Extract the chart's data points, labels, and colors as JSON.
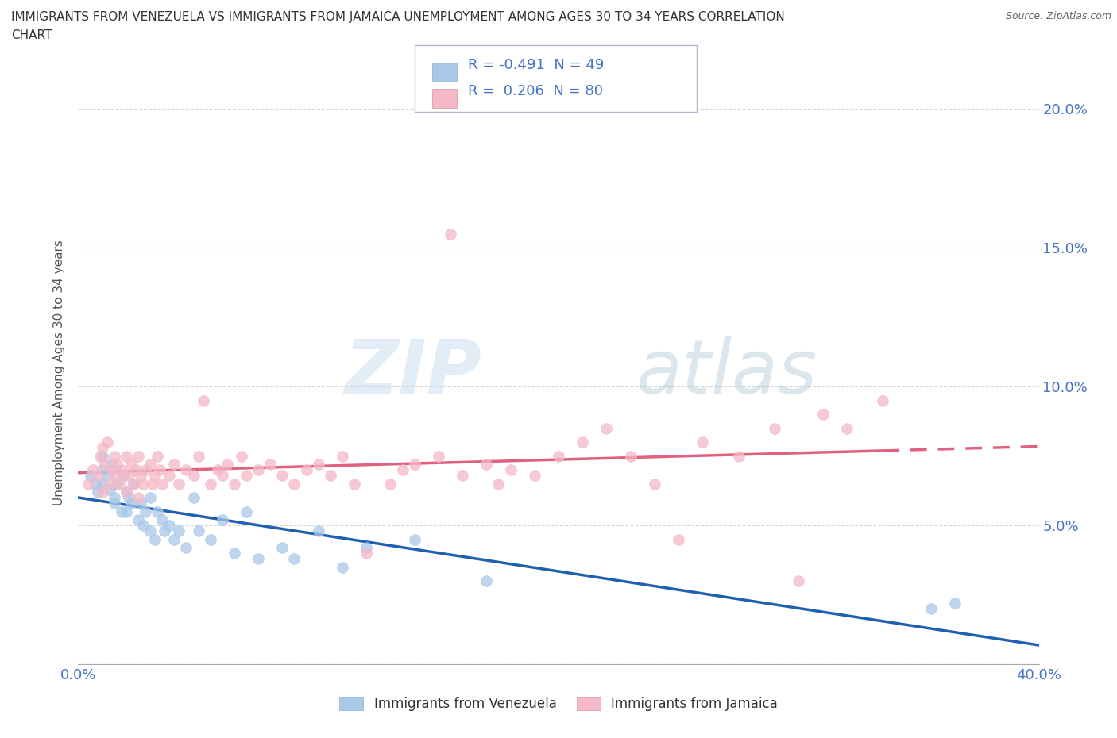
{
  "title_line1": "IMMIGRANTS FROM VENEZUELA VS IMMIGRANTS FROM JAMAICA UNEMPLOYMENT AMONG AGES 30 TO 34 YEARS CORRELATION",
  "title_line2": "CHART",
  "source": "Source: ZipAtlas.com",
  "ylabel": "Unemployment Among Ages 30 to 34 years",
  "watermark": "ZIPatlas",
  "venezuela_R": -0.491,
  "venezuela_N": 49,
  "jamaica_R": 0.206,
  "jamaica_N": 80,
  "venezuela_color": "#a8c8e8",
  "jamaica_color": "#f4b8c8",
  "venezuela_line_color": "#2060b0",
  "jamaica_line_color": "#e06080",
  "background_color": "#ffffff",
  "xlim": [
    0.0,
    0.4
  ],
  "ylim": [
    0.0,
    0.21
  ],
  "venezuela_x": [
    0.005,
    0.007,
    0.008,
    0.01,
    0.01,
    0.01,
    0.012,
    0.013,
    0.014,
    0.015,
    0.015,
    0.016,
    0.018,
    0.019,
    0.02,
    0.02,
    0.021,
    0.022,
    0.023,
    0.025,
    0.026,
    0.027,
    0.028,
    0.03,
    0.03,
    0.032,
    0.033,
    0.035,
    0.036,
    0.038,
    0.04,
    0.042,
    0.045,
    0.048,
    0.05,
    0.055,
    0.06,
    0.065,
    0.07,
    0.075,
    0.085,
    0.09,
    0.1,
    0.11,
    0.12,
    0.14,
    0.17,
    0.355,
    0.365
  ],
  "venezuela_y": [
    0.068,
    0.065,
    0.062,
    0.075,
    0.07,
    0.065,
    0.068,
    0.063,
    0.072,
    0.06,
    0.058,
    0.065,
    0.055,
    0.068,
    0.062,
    0.055,
    0.06,
    0.058,
    0.065,
    0.052,
    0.058,
    0.05,
    0.055,
    0.048,
    0.06,
    0.045,
    0.055,
    0.052,
    0.048,
    0.05,
    0.045,
    0.048,
    0.042,
    0.06,
    0.048,
    0.045,
    0.052,
    0.04,
    0.055,
    0.038,
    0.042,
    0.038,
    0.048,
    0.035,
    0.042,
    0.045,
    0.03,
    0.02,
    0.022
  ],
  "jamaica_x": [
    0.004,
    0.006,
    0.008,
    0.009,
    0.01,
    0.01,
    0.011,
    0.012,
    0.013,
    0.014,
    0.015,
    0.015,
    0.016,
    0.017,
    0.018,
    0.019,
    0.02,
    0.02,
    0.021,
    0.022,
    0.023,
    0.024,
    0.025,
    0.025,
    0.026,
    0.027,
    0.028,
    0.03,
    0.031,
    0.032,
    0.033,
    0.034,
    0.035,
    0.038,
    0.04,
    0.042,
    0.045,
    0.048,
    0.05,
    0.052,
    0.055,
    0.058,
    0.06,
    0.062,
    0.065,
    0.068,
    0.07,
    0.075,
    0.08,
    0.085,
    0.09,
    0.095,
    0.1,
    0.105,
    0.11,
    0.115,
    0.12,
    0.13,
    0.135,
    0.14,
    0.15,
    0.155,
    0.16,
    0.17,
    0.175,
    0.18,
    0.19,
    0.2,
    0.21,
    0.22,
    0.23,
    0.24,
    0.25,
    0.26,
    0.275,
    0.29,
    0.3,
    0.31,
    0.32,
    0.335
  ],
  "jamaica_y": [
    0.065,
    0.07,
    0.068,
    0.075,
    0.062,
    0.078,
    0.072,
    0.08,
    0.065,
    0.07,
    0.068,
    0.075,
    0.072,
    0.065,
    0.07,
    0.068,
    0.062,
    0.075,
    0.068,
    0.072,
    0.065,
    0.07,
    0.06,
    0.075,
    0.068,
    0.065,
    0.07,
    0.072,
    0.065,
    0.068,
    0.075,
    0.07,
    0.065,
    0.068,
    0.072,
    0.065,
    0.07,
    0.068,
    0.075,
    0.095,
    0.065,
    0.07,
    0.068,
    0.072,
    0.065,
    0.075,
    0.068,
    0.07,
    0.072,
    0.068,
    0.065,
    0.07,
    0.072,
    0.068,
    0.075,
    0.065,
    0.04,
    0.065,
    0.07,
    0.072,
    0.075,
    0.155,
    0.068,
    0.072,
    0.065,
    0.07,
    0.068,
    0.075,
    0.08,
    0.085,
    0.075,
    0.065,
    0.045,
    0.08,
    0.075,
    0.085,
    0.03,
    0.09,
    0.085,
    0.095
  ]
}
